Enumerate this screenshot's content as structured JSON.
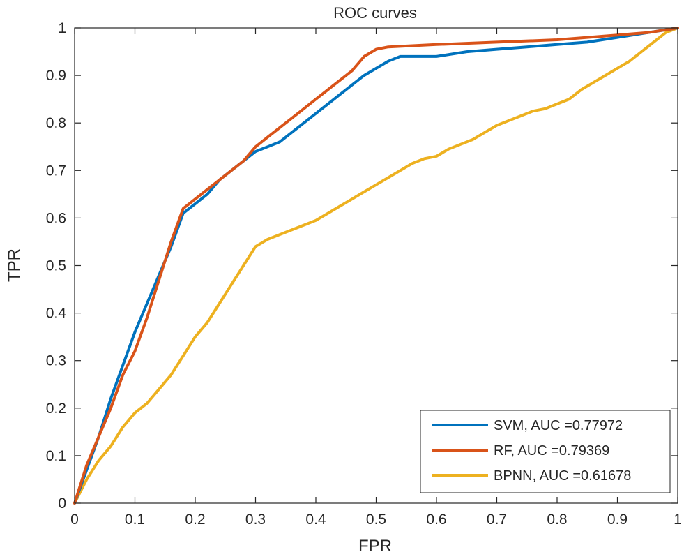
{
  "chart_data": {
    "type": "line",
    "title": "ROC curves",
    "xlabel": "FPR",
    "ylabel": "TPR",
    "xlim": [
      0,
      1
    ],
    "ylim": [
      0,
      1
    ],
    "grid": false,
    "legend_position": "bottom-right",
    "x_ticks": [
      0,
      0.1,
      0.2,
      0.3,
      0.4,
      0.5,
      0.6,
      0.7,
      0.8,
      0.9,
      1
    ],
    "y_ticks": [
      0,
      0.1,
      0.2,
      0.3,
      0.4,
      0.5,
      0.6,
      0.7,
      0.8,
      0.9,
      1
    ],
    "x_tick_labels": [
      "0",
      "0.1",
      "0.2",
      "0.3",
      "0.4",
      "0.5",
      "0.6",
      "0.7",
      "0.8",
      "0.9",
      "1"
    ],
    "y_tick_labels": [
      "0",
      "0.1",
      "0.2",
      "0.3",
      "0.4",
      "0.5",
      "0.6",
      "0.7",
      "0.8",
      "0.9",
      "1"
    ],
    "series": [
      {
        "name": "SVM, AUC =0.77972",
        "color": "#0072BD",
        "x": [
          0,
          0.02,
          0.04,
          0.06,
          0.08,
          0.1,
          0.12,
          0.14,
          0.16,
          0.18,
          0.2,
          0.22,
          0.24,
          0.26,
          0.28,
          0.3,
          0.32,
          0.34,
          0.36,
          0.38,
          0.4,
          0.42,
          0.44,
          0.46,
          0.48,
          0.5,
          0.52,
          0.54,
          0.6,
          0.65,
          0.7,
          0.75,
          0.8,
          0.85,
          0.9,
          0.95,
          1.0
        ],
        "y": [
          0,
          0.07,
          0.14,
          0.22,
          0.29,
          0.36,
          0.42,
          0.48,
          0.54,
          0.61,
          0.63,
          0.65,
          0.68,
          0.7,
          0.72,
          0.74,
          0.75,
          0.76,
          0.78,
          0.8,
          0.82,
          0.84,
          0.86,
          0.88,
          0.9,
          0.915,
          0.93,
          0.94,
          0.94,
          0.95,
          0.955,
          0.96,
          0.965,
          0.97,
          0.98,
          0.99,
          1.0
        ]
      },
      {
        "name": "RF, AUC =0.79369",
        "color": "#D95319",
        "x": [
          0,
          0.02,
          0.04,
          0.06,
          0.08,
          0.1,
          0.12,
          0.14,
          0.16,
          0.18,
          0.2,
          0.22,
          0.24,
          0.26,
          0.28,
          0.3,
          0.32,
          0.34,
          0.36,
          0.38,
          0.4,
          0.42,
          0.44,
          0.46,
          0.48,
          0.5,
          0.52,
          0.6,
          0.7,
          0.8,
          0.9,
          0.95,
          1.0
        ],
        "y": [
          0,
          0.08,
          0.14,
          0.2,
          0.27,
          0.32,
          0.39,
          0.47,
          0.55,
          0.62,
          0.64,
          0.66,
          0.68,
          0.7,
          0.72,
          0.75,
          0.77,
          0.79,
          0.81,
          0.83,
          0.85,
          0.87,
          0.89,
          0.91,
          0.94,
          0.955,
          0.96,
          0.965,
          0.97,
          0.975,
          0.985,
          0.99,
          1.0
        ]
      },
      {
        "name": "BPNN, AUC =0.61678",
        "color": "#EDB120",
        "x": [
          0,
          0.02,
          0.04,
          0.06,
          0.08,
          0.1,
          0.12,
          0.14,
          0.16,
          0.18,
          0.2,
          0.22,
          0.24,
          0.26,
          0.28,
          0.3,
          0.32,
          0.34,
          0.36,
          0.38,
          0.4,
          0.42,
          0.44,
          0.46,
          0.48,
          0.5,
          0.52,
          0.54,
          0.56,
          0.58,
          0.6,
          0.62,
          0.64,
          0.66,
          0.68,
          0.7,
          0.72,
          0.74,
          0.76,
          0.78,
          0.8,
          0.82,
          0.84,
          0.86,
          0.88,
          0.9,
          0.92,
          0.94,
          0.96,
          0.98,
          1.0
        ],
        "y": [
          0,
          0.05,
          0.09,
          0.12,
          0.16,
          0.19,
          0.21,
          0.24,
          0.27,
          0.31,
          0.35,
          0.38,
          0.42,
          0.46,
          0.5,
          0.54,
          0.555,
          0.565,
          0.575,
          0.585,
          0.595,
          0.61,
          0.625,
          0.64,
          0.655,
          0.67,
          0.685,
          0.7,
          0.715,
          0.725,
          0.73,
          0.745,
          0.755,
          0.765,
          0.78,
          0.795,
          0.805,
          0.815,
          0.825,
          0.83,
          0.84,
          0.85,
          0.87,
          0.885,
          0.9,
          0.915,
          0.93,
          0.95,
          0.97,
          0.99,
          1.0
        ]
      }
    ]
  }
}
